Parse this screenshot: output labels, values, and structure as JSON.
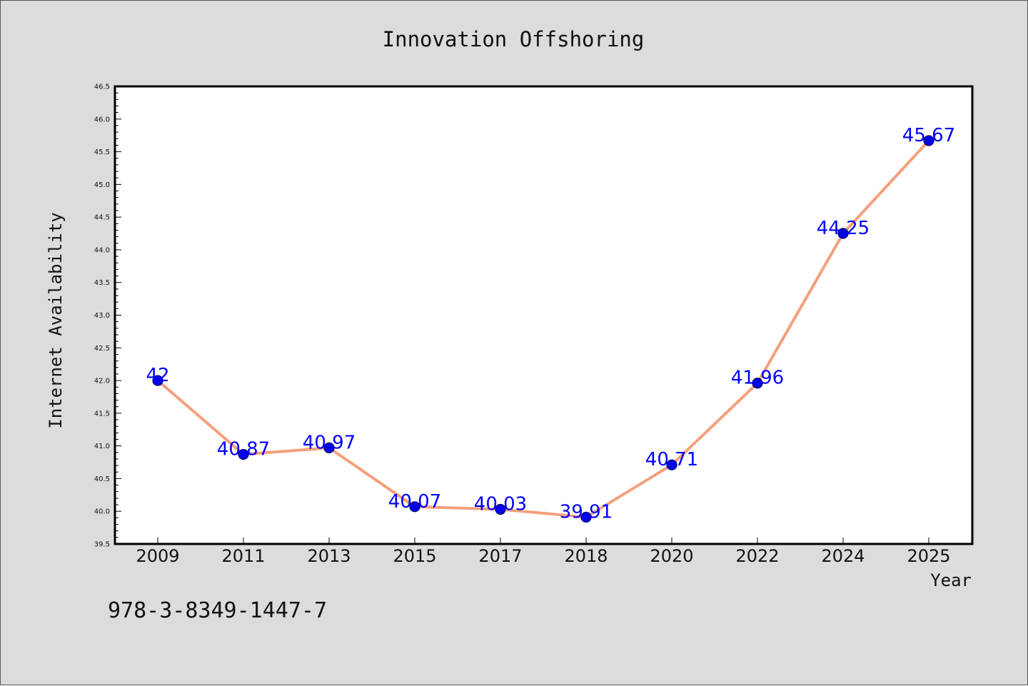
{
  "chart_data": {
    "type": "line",
    "title": "Innovation Offshoring",
    "xlabel": "Year",
    "ylabel": "Internet Availability",
    "categories": [
      "2009",
      "2011",
      "2013",
      "2015",
      "2017",
      "2018",
      "2020",
      "2022",
      "2024",
      "2025"
    ],
    "values": [
      42,
      40.87,
      40.97,
      40.07,
      40.03,
      39.91,
      40.71,
      41.96,
      44.25,
      45.67
    ],
    "data_labels": [
      "42",
      "40.87",
      "40.97",
      "40.07",
      "40.03",
      "39.91",
      "40.71",
      "41.96",
      "44.25",
      "45.67"
    ],
    "ylim": [
      39.5,
      46.5
    ],
    "yticks": [
      "39.5",
      "40.0",
      "40.5",
      "41.0",
      "41.5",
      "42.0",
      "42.5",
      "43.0",
      "43.5",
      "44.0",
      "44.5",
      "45.0",
      "45.5",
      "46.0",
      "46.5"
    ],
    "grid": false,
    "legend": "none",
    "colors": {
      "line": "#f4a07c",
      "marker_fill": "#0000ee",
      "marker_edge": "#000066",
      "data_label": "#0000ff",
      "plot_background": "#ffffff",
      "page_background": "#dcdcdc"
    }
  },
  "footer": {
    "text": "978-3-8349-1447-7"
  }
}
